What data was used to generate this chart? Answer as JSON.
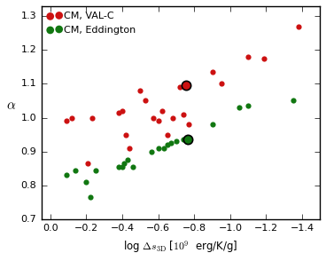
{
  "xlabel": "log $\\Delta s_{\\mathrm{3D}}$ [$10^{9}$  erg/K/g]",
  "ylabel": "$\\alpha$",
  "xlim": [
    0.05,
    -1.5
  ],
  "ylim": [
    0.7,
    1.33
  ],
  "xticks": [
    0.0,
    -0.2,
    -0.4,
    -0.6,
    -0.8,
    -1.0,
    -1.2,
    -1.4
  ],
  "yticks": [
    0.7,
    0.8,
    0.9,
    1.0,
    1.1,
    1.2,
    1.3
  ],
  "red_x": [
    -0.09,
    -0.12,
    -0.21,
    -0.23,
    -0.38,
    -0.4,
    -0.42,
    -0.44,
    -0.5,
    -0.53,
    -0.57,
    -0.6,
    -0.62,
    -0.65,
    -0.68,
    -0.72,
    -0.74,
    -0.77,
    -0.9,
    -0.95,
    -1.1,
    -1.19,
    -1.38
  ],
  "red_y": [
    0.99,
    1.0,
    0.865,
    1.0,
    1.015,
    1.02,
    0.95,
    0.91,
    1.08,
    1.05,
    1.0,
    0.99,
    1.02,
    0.95,
    1.0,
    1.09,
    1.01,
    0.98,
    1.135,
    1.1,
    1.18,
    1.175,
    1.27
  ],
  "green_x": [
    -0.09,
    -0.14,
    -0.2,
    -0.22,
    -0.25,
    -0.38,
    -0.4,
    -0.41,
    -0.43,
    -0.46,
    -0.56,
    -0.6,
    -0.63,
    -0.65,
    -0.67,
    -0.7,
    -0.74,
    -0.9,
    -1.05,
    -1.1,
    -1.35
  ],
  "green_y": [
    0.83,
    0.845,
    0.81,
    0.765,
    0.845,
    0.855,
    0.855,
    0.865,
    0.875,
    0.855,
    0.9,
    0.91,
    0.91,
    0.92,
    0.925,
    0.93,
    0.935,
    0.98,
    1.03,
    1.035,
    1.05
  ],
  "red_special_x": [
    -0.755
  ],
  "red_special_y": [
    1.095
  ],
  "green_special_x": [
    -0.765
  ],
  "green_special_y": [
    0.935
  ],
  "red_color": "#cc1111",
  "green_color": "#117711",
  "marker_size": 20,
  "special_marker_size": 55,
  "special_linewidth": 1.2
}
